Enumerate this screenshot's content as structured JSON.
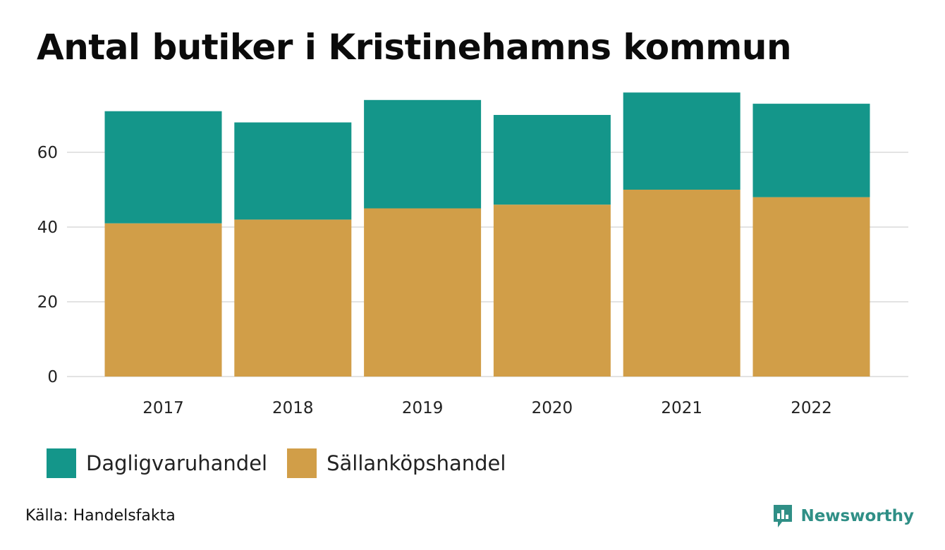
{
  "title": "Antal butiker i Kristinehamns kommun",
  "source": "Källa: Handelsfakta",
  "brand": {
    "name": "Newsworthy",
    "icon": "newsworthy-logo-icon",
    "color": "#2f8f86"
  },
  "legend": [
    {
      "name": "Dagligvaruhandel",
      "color": "#14968a"
    },
    {
      "name": "Sällanköpshandel",
      "color": "#d19e48"
    }
  ],
  "chart_data": {
    "type": "bar",
    "stacked": true,
    "categories": [
      "2017",
      "2018",
      "2019",
      "2020",
      "2021",
      "2022"
    ],
    "series": [
      {
        "name": "Sällanköpshandel",
        "color": "#d19e48",
        "values": [
          41,
          42,
          45,
          46,
          50,
          48
        ]
      },
      {
        "name": "Dagligvaruhandel",
        "color": "#14968a",
        "values": [
          30,
          26,
          29,
          24,
          26,
          25
        ]
      }
    ],
    "yticks": [
      0,
      20,
      40,
      60
    ],
    "ylim": [
      0,
      76
    ],
    "grid": true,
    "legend_position": "bottom-left",
    "xlabel": "",
    "ylabel": ""
  }
}
